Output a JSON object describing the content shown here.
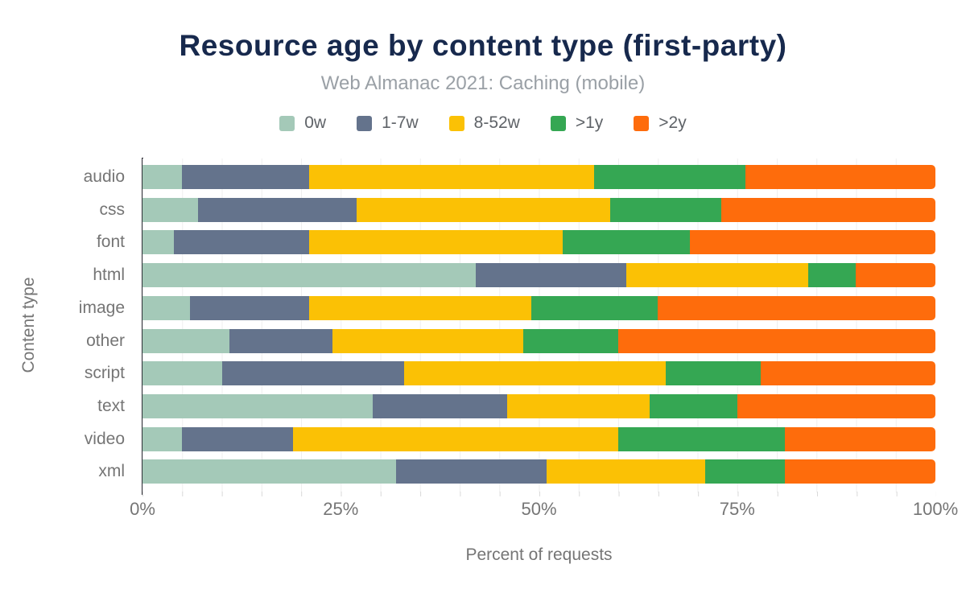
{
  "chart_data": {
    "type": "bar",
    "orientation": "horizontal",
    "stacked": true,
    "title": "Resource age by content type (first-party)",
    "subtitle": "Web Almanac 2021: Caching (mobile)",
    "xlabel": "Percent of requests",
    "ylabel": "Content type",
    "xlim": [
      0,
      100
    ],
    "x_ticks": [
      "0%",
      "25%",
      "50%",
      "75%",
      "100%"
    ],
    "grid": "vertical minor gridlines every 5%",
    "legend_position": "top",
    "categories": [
      "audio",
      "css",
      "font",
      "html",
      "image",
      "other",
      "script",
      "text",
      "video",
      "xml"
    ],
    "series": [
      {
        "name": "0w",
        "color": "#a4c9b8",
        "values": [
          5,
          7,
          4,
          42,
          6,
          11,
          10,
          29,
          5,
          32
        ]
      },
      {
        "name": "1-7w",
        "color": "#64738c",
        "values": [
          16,
          20,
          17,
          19,
          15,
          13,
          23,
          17,
          14,
          19
        ]
      },
      {
        "name": "8-52w",
        "color": "#fbc105",
        "values": [
          36,
          32,
          32,
          23,
          28,
          24,
          33,
          18,
          41,
          20
        ]
      },
      {
        "name": ">1y",
        "color": "#35a753",
        "values": [
          19,
          14,
          16,
          6,
          16,
          12,
          12,
          11,
          21,
          10
        ]
      },
      {
        "name": ">2y",
        "color": "#fe6c0c",
        "values": [
          24,
          27,
          31,
          10,
          35,
          40,
          22,
          25,
          19,
          19
        ]
      }
    ],
    "axis_colors": {
      "title": "#17294d",
      "subtitle": "#9aa0a6",
      "axis_text": "#757575",
      "axis_line": "#2e2e36"
    }
  }
}
